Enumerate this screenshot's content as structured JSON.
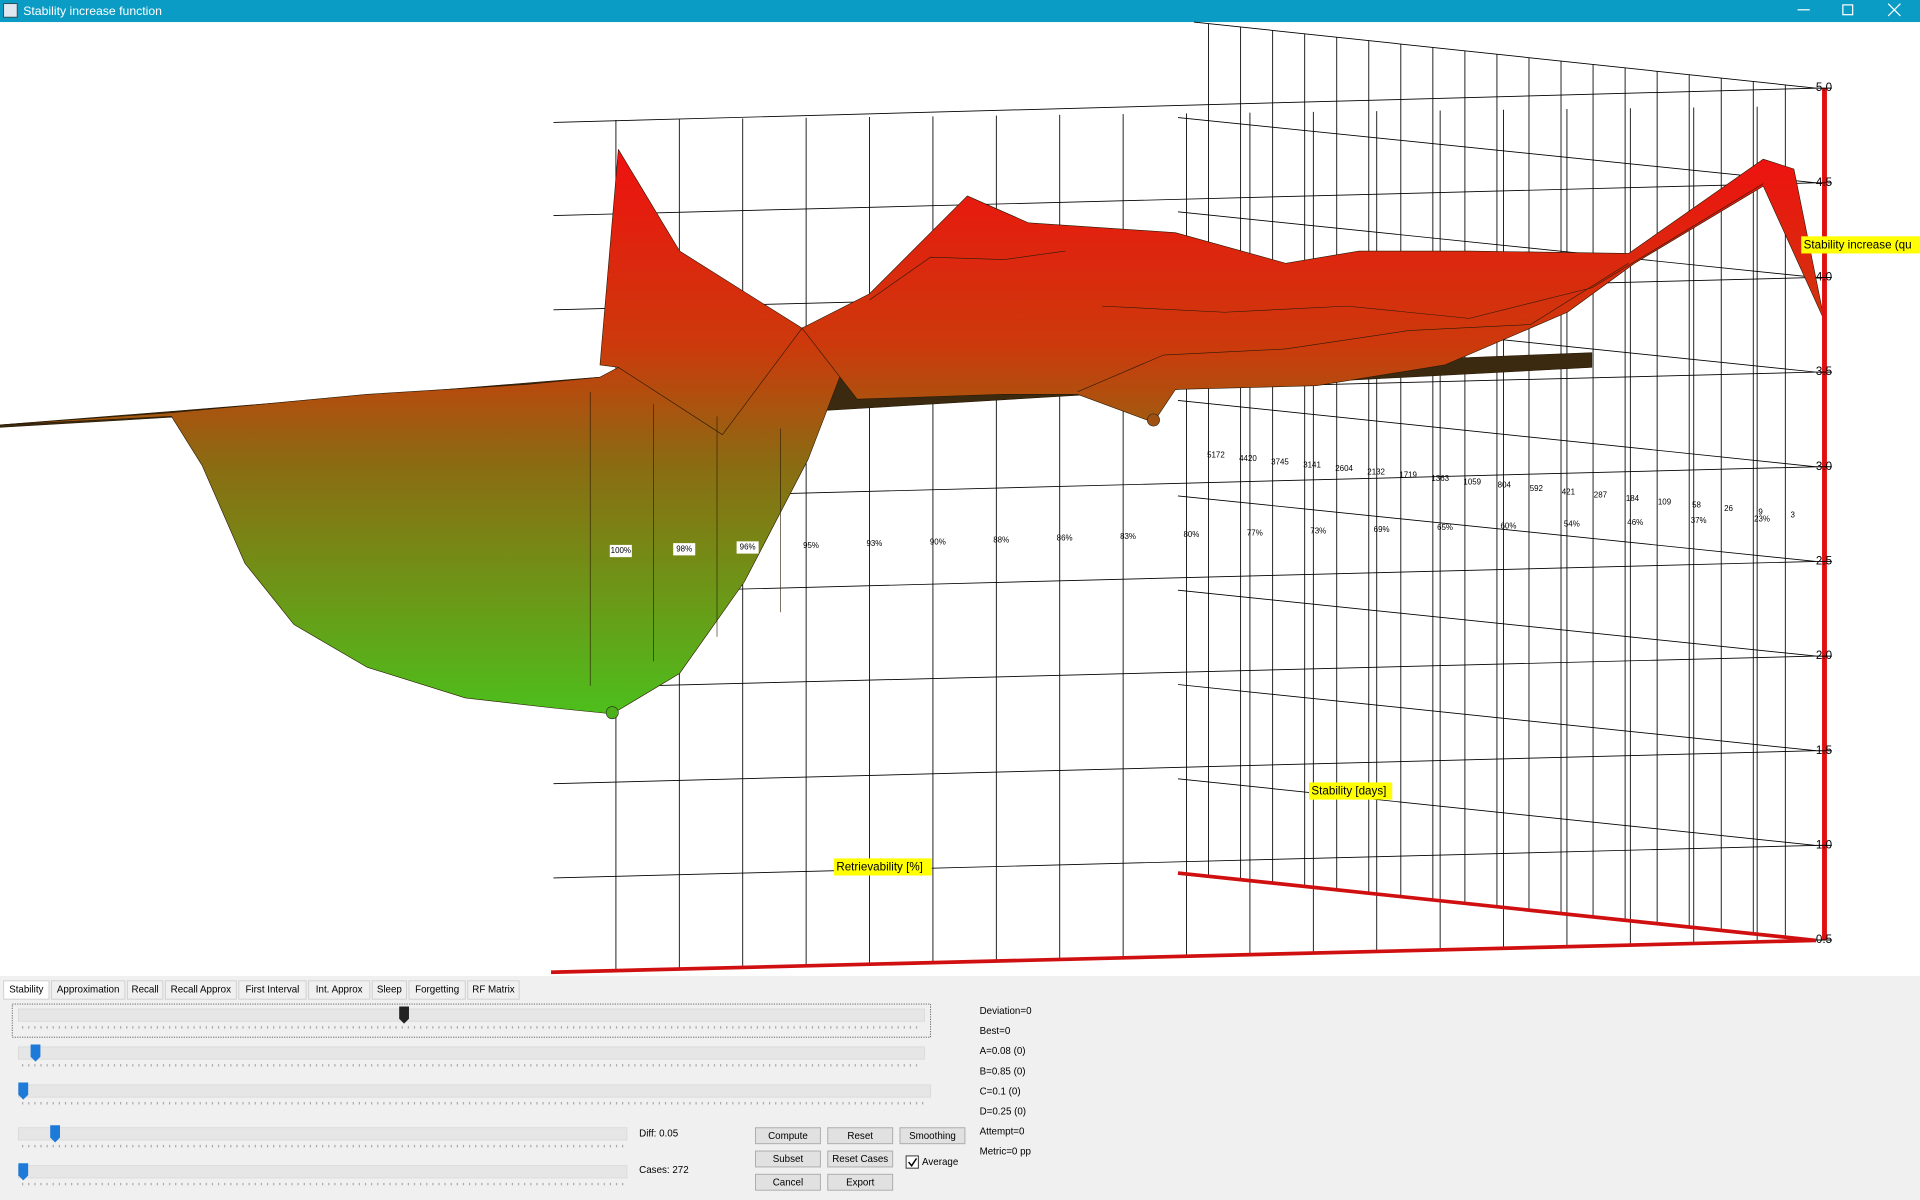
{
  "window": {
    "title": "Stability increase function"
  },
  "plot": {
    "z_ticks": [
      "5.0",
      "4.5",
      "4.0",
      "3.5",
      "3.0",
      "2.5",
      "2.0",
      "1.5",
      "1.0",
      "0.5"
    ],
    "z_axis_label": "Stability increase (qu",
    "retrievability_label": "Retrievability [%]",
    "stability_label": "Stability [days]",
    "retrievability_ticks": [
      "100%",
      "98%",
      "96%",
      "95%",
      "93%",
      "90%",
      "88%",
      "86%",
      "83%",
      "80%",
      "77%",
      "73%",
      "69%",
      "65%",
      "60%",
      "54%",
      "46%",
      "37%",
      "23%"
    ],
    "stability_ticks": [
      "5172",
      "4420",
      "3745",
      "3141",
      "2604",
      "2132",
      "1719",
      "1363",
      "1059",
      "804",
      "592",
      "421",
      "287",
      "184",
      "109",
      "58",
      "26",
      "9",
      "3"
    ]
  },
  "tabs": [
    "Stability",
    "Approximation",
    "Recall",
    "Recall Approx",
    "First Interval",
    "Int. Approx",
    "Sleep",
    "Forgetting",
    "RF Matrix"
  ],
  "controls": {
    "diff": "Diff: 0.05",
    "cases": "Cases: 272",
    "buttons": [
      "Compute",
      "Reset",
      "Smoothing",
      "Subset",
      "Reset Cases",
      "Cancel",
      "Export"
    ],
    "average": "Average"
  },
  "stats": [
    "Deviation=0",
    "Best=0",
    "A=0.08 (0)",
    "B=0.85 (0)",
    "C=0.1 (0)",
    "D=0.25 (0)",
    "Attempt=0",
    "Metric=0 pp"
  ]
}
